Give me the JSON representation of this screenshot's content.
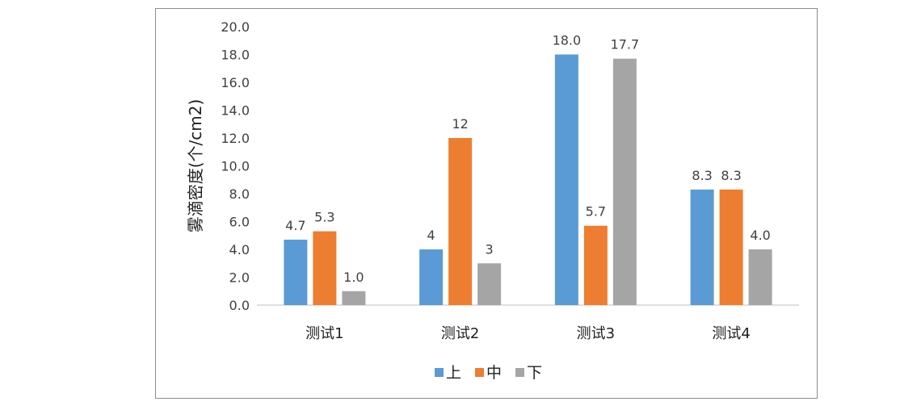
{
  "chart_data": {
    "type": "bar",
    "title": "",
    "xlabel": "",
    "ylabel": "雾滴密度(个/cm2)",
    "ylim": [
      0,
      20
    ],
    "y_ticks": [
      "0.0",
      "2.0",
      "4.0",
      "6.0",
      "8.0",
      "10.0",
      "12.0",
      "14.0",
      "16.0",
      "18.0",
      "20.0"
    ],
    "categories": [
      "测试1",
      "测试2",
      "测试3",
      "测试4"
    ],
    "series": [
      {
        "name": "上",
        "color": "#5b9bd5",
        "values": [
          4.7,
          4,
          18.0,
          8.3
        ],
        "labels": [
          "4.7",
          "4",
          "18.0",
          "8.3"
        ]
      },
      {
        "name": "中",
        "color": "#ed7d31",
        "values": [
          5.3,
          12,
          5.7,
          8.3
        ],
        "labels": [
          "5.3",
          "12",
          "5.7",
          "8.3"
        ]
      },
      {
        "name": "下",
        "color": "#a5a5a5",
        "values": [
          1.0,
          3,
          17.7,
          4.0
        ],
        "labels": [
          "1.0",
          "3",
          "17.7",
          "4.0"
        ]
      }
    ],
    "grid": false,
    "legend_position": "bottom"
  }
}
